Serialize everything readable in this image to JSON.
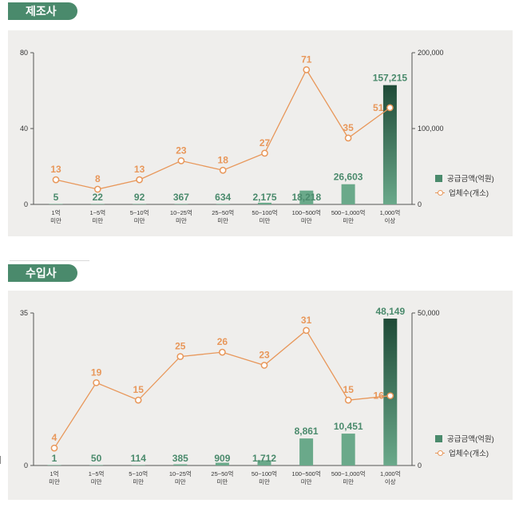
{
  "colors": {
    "bar_light": "#6aa98a",
    "bar_dark": "#1f4a37",
    "line": "#e8975a",
    "value_green": "#4a8a6c",
    "axis": "#555555"
  },
  "chart_data": [
    {
      "type": "bar+line",
      "title": "제조사",
      "categories": [
        [
          "1억",
          "미만"
        ],
        [
          "1~5억",
          "미만"
        ],
        [
          "5~10억",
          "미만"
        ],
        [
          "10~25억",
          "미만"
        ],
        [
          "25~50억",
          "미만"
        ],
        [
          "50~100억",
          "미만"
        ],
        [
          "100~500억",
          "미만"
        ],
        [
          "500~1,000억",
          "미만"
        ],
        [
          "1,000억",
          "이상"
        ]
      ],
      "bar_series": {
        "name": "공급금액(억원)",
        "values": [
          5,
          22,
          92,
          367,
          634,
          2175,
          18218,
          26603,
          157215
        ],
        "labels": [
          "5",
          "22",
          "92",
          "367",
          "634",
          "2,175",
          "18,218",
          "26,603",
          "157,215"
        ]
      },
      "line_series": {
        "name": "업체수(개소)",
        "values": [
          13,
          8,
          13,
          23,
          18,
          27,
          71,
          35,
          51
        ]
      },
      "ylim_left": [
        0,
        80
      ],
      "yticks_left": [
        "0",
        "40",
        "80"
      ],
      "ytick_values_left": [
        0,
        40,
        80
      ],
      "ylim_right": [
        0,
        200000
      ],
      "yticks_right": [
        "0",
        "100,000",
        "200,000"
      ],
      "ytick_values_right": [
        0,
        100000,
        200000
      ],
      "legend_position": "right"
    },
    {
      "type": "bar+line",
      "title": "수입사",
      "categories": [
        [
          "1억",
          "미만"
        ],
        [
          "1~5억",
          "미만"
        ],
        [
          "5~10억",
          "미만"
        ],
        [
          "10~25억",
          "미만"
        ],
        [
          "25~50억",
          "미만"
        ],
        [
          "50~100억",
          "미만"
        ],
        [
          "100~500억",
          "미만"
        ],
        [
          "500~1,000억",
          "미만"
        ],
        [
          "1,000억",
          "이상"
        ]
      ],
      "bar_series": {
        "name": "공급금액(억원)",
        "values": [
          1,
          50,
          114,
          385,
          909,
          1712,
          8861,
          10451,
          48149
        ],
        "labels": [
          "1",
          "50",
          "114",
          "385",
          "909",
          "1,712",
          "8,861",
          "10,451",
          "48,149"
        ]
      },
      "line_series": {
        "name": "업체수(개소)",
        "values": [
          4,
          19,
          15,
          25,
          26,
          23,
          31,
          15,
          16
        ]
      },
      "ylim_left": [
        0,
        35
      ],
      "yticks_left": [
        "0",
        "35"
      ],
      "ytick_values_left": [
        0,
        35
      ],
      "ylim_right": [
        0,
        50000
      ],
      "yticks_right": [
        "0",
        "50,000"
      ],
      "ytick_values_right": [
        0,
        50000
      ],
      "legend_position": "right"
    }
  ]
}
